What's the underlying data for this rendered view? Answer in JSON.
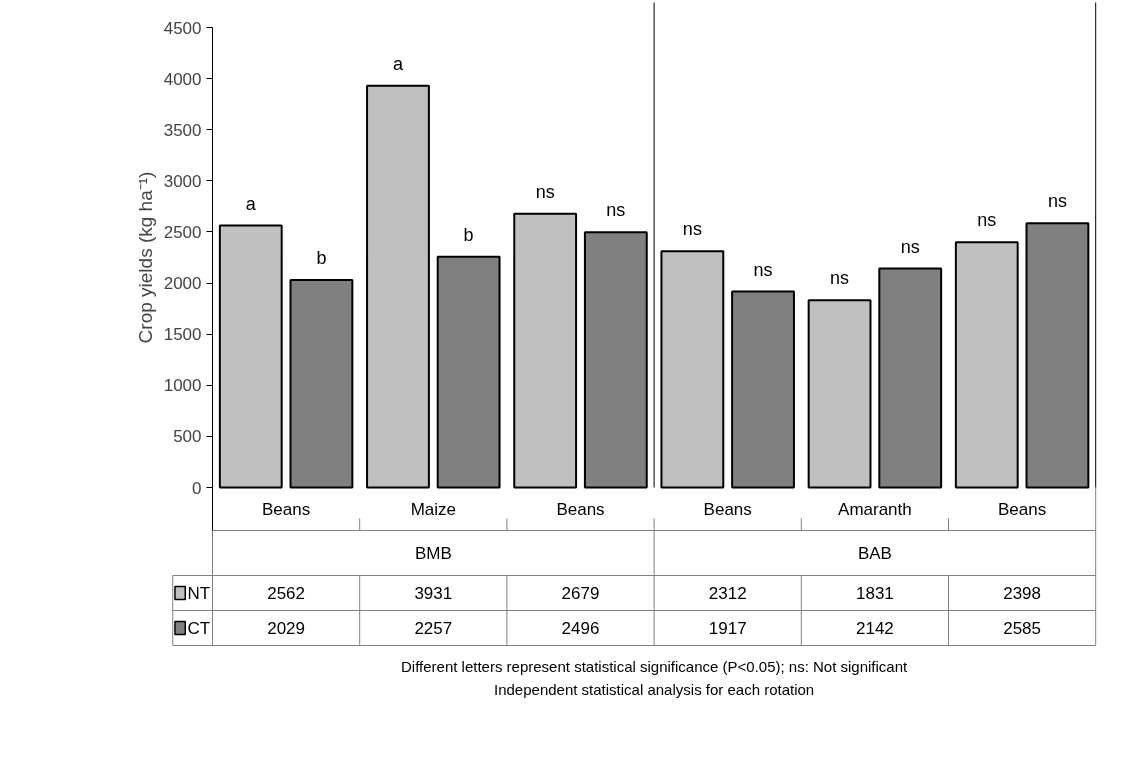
{
  "chart_data": {
    "type": "bar",
    "ylabel": "Crop yields (kg ha⁻¹)",
    "categories": [
      "Beans",
      "Maize",
      "Beans",
      "Beans",
      "Amaranth",
      "Beans"
    ],
    "series": [
      {
        "name": "NT",
        "color": "#c0c0c0",
        "values": [
          2562,
          3931,
          2679,
          2312,
          1831,
          2398
        ]
      },
      {
        "name": "CT",
        "color": "#808080",
        "values": [
          2029,
          2257,
          2496,
          1917,
          2142,
          2585
        ]
      }
    ],
    "ylim": [
      0,
      4500
    ],
    "yticks": [
      0,
      500,
      1000,
      1500,
      2000,
      2500,
      3000,
      3500,
      4000,
      4500
    ],
    "data_labels": true,
    "grid": false,
    "legend": "bottom left",
    "annotations": [
      "BMB",
      "BAB",
      "Different letters represent statistical significance (P<0.05); ns: Not significant",
      "Independent statistical analysis for each rotation",
      {
        "text": "a",
        "y": 2562
      },
      {
        "text": "a",
        "y": 3931
      },
      {
        "text": "ns",
        "y": 2679
      },
      {
        "text": "ns",
        "y": 2312
      },
      {
        "text": "ns",
        "y": 1831
      },
      {
        "text": "ns",
        "y": 2398
      },
      {
        "text": "b",
        "y": 2029
      },
      {
        "text": "b",
        "y": 2257
      },
      {
        "text": "ns",
        "y": 2496
      },
      {
        "text": "ns",
        "y": 1917
      },
      {
        "text": "ns",
        "y": 2142
      },
      {
        "text": "ns",
        "y": 2585
      }
    ]
  }
}
